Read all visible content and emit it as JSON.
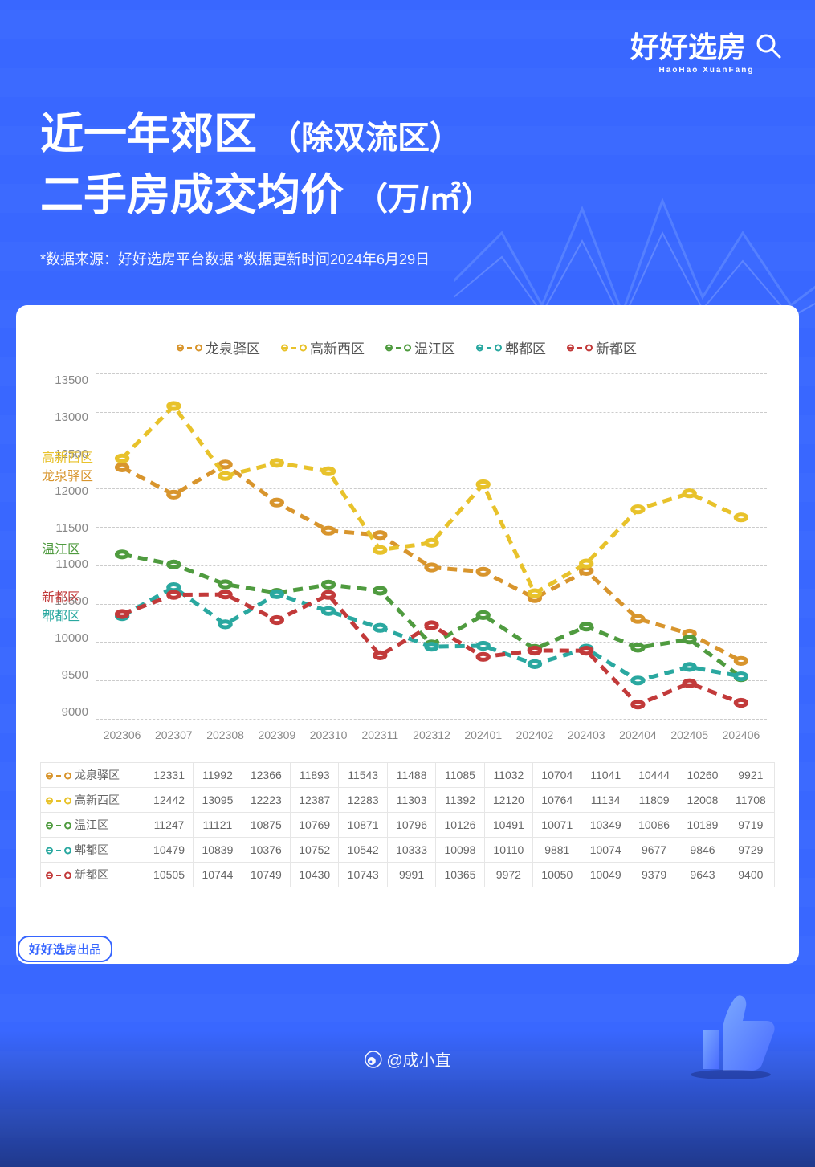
{
  "brand": {
    "name": "好好选房",
    "sub": "HaoHao XuanFang"
  },
  "header": {
    "title_l1_a": "近一年郊区",
    "title_l1_b": "（除双流区）",
    "title_l2_a": "二手房成交均价",
    "title_l2_b": "（万/㎡）",
    "source": "*数据来源：好好选房平台数据  *数据更新时间2024年6月29日"
  },
  "badge": {
    "bold": "好好选房",
    "rest": "出品"
  },
  "watermark": "@成小直",
  "chart": {
    "type": "line",
    "background_color": "#ffffff",
    "grid_color": "#cccccc",
    "ylim": [
      9000,
      13500
    ],
    "ytick_step": 500,
    "yticks": [
      13500,
      13000,
      12500,
      12000,
      11500,
      11000,
      10500,
      10000,
      9500,
      9000
    ],
    "categories": [
      "202306",
      "202307",
      "202308",
      "202309",
      "202310",
      "202311",
      "202312",
      "202401",
      "202402",
      "202403",
      "202404",
      "202405",
      "202406"
    ],
    "line_style": "dashed",
    "marker_style": "hollow-circle",
    "marker_size": 5,
    "line_width": 2,
    "label_fontsize": 15,
    "series": [
      {
        "name": "龙泉驿区",
        "label_align": "龙泉驿区",
        "color": "#d8952d",
        "values": [
          12331,
          11992,
          12366,
          11893,
          11543,
          11488,
          11085,
          11032,
          10704,
          11041,
          10444,
          10260,
          9921
        ]
      },
      {
        "name": "高新西区",
        "label_align": "高新西区",
        "color": "#e8c22b",
        "values": [
          12442,
          13095,
          12223,
          12387,
          12283,
          11303,
          11392,
          12120,
          10764,
          11134,
          11809,
          12008,
          11708
        ]
      },
      {
        "name": "温江区",
        "label_align": "温江区",
        "color": "#4f9b3f",
        "values": [
          11247,
          11121,
          10875,
          10769,
          10871,
          10796,
          10126,
          10491,
          10071,
          10349,
          10086,
          10189,
          9719
        ]
      },
      {
        "name": "郫都区",
        "label_align": "郫都区",
        "color": "#2aa8a0",
        "values": [
          10479,
          10839,
          10376,
          10752,
          10542,
          10333,
          10098,
          10110,
          9881,
          10074,
          9677,
          9846,
          9729
        ]
      },
      {
        "name": "新都区",
        "label_align": "新都区",
        "color": "#c23a3a",
        "values": [
          10505,
          10744,
          10749,
          10430,
          10743,
          9991,
          10365,
          9972,
          10050,
          10049,
          9379,
          9643,
          9400
        ]
      }
    ],
    "left_labels": [
      {
        "text": "高新西区",
        "color": "#e8c22b",
        "y": 12442
      },
      {
        "text": "龙泉驿区",
        "color": "#d8952d",
        "y": 12200
      },
      {
        "text": "温江区",
        "color": "#4f9b3f",
        "y": 11247
      },
      {
        "text": "新都区",
        "color": "#c23a3a",
        "y": 10620
      },
      {
        "text": "郫都区",
        "color": "#2aa8a0",
        "y": 10380
      }
    ]
  }
}
